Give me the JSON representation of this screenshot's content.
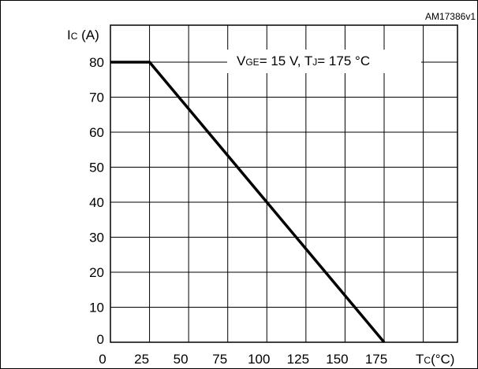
{
  "chart_data": {
    "type": "line",
    "figure_code": "AM17386v1",
    "ylabel": {
      "main": "I",
      "sub": "C",
      "unit": " (A)"
    },
    "xlabel": {
      "main": "T",
      "sub": "C",
      "unit": "(°C)"
    },
    "condition": {
      "v_main": "V",
      "v_sub": "GE",
      "v_rest": "= 15 V, ",
      "t_main": "T",
      "t_sub": "J",
      "t_rest": "= 175 °C"
    },
    "xlim": [
      0,
      175
    ],
    "ylim": [
      0,
      90
    ],
    "xticks": [
      0,
      25,
      50,
      75,
      100,
      125,
      150,
      175
    ],
    "yticks": [
      0,
      10,
      20,
      30,
      40,
      50,
      60,
      70,
      80
    ],
    "grid": true,
    "series": [
      {
        "x": [
          0,
          25,
          175
        ],
        "y": [
          80,
          80,
          0
        ]
      }
    ]
  }
}
